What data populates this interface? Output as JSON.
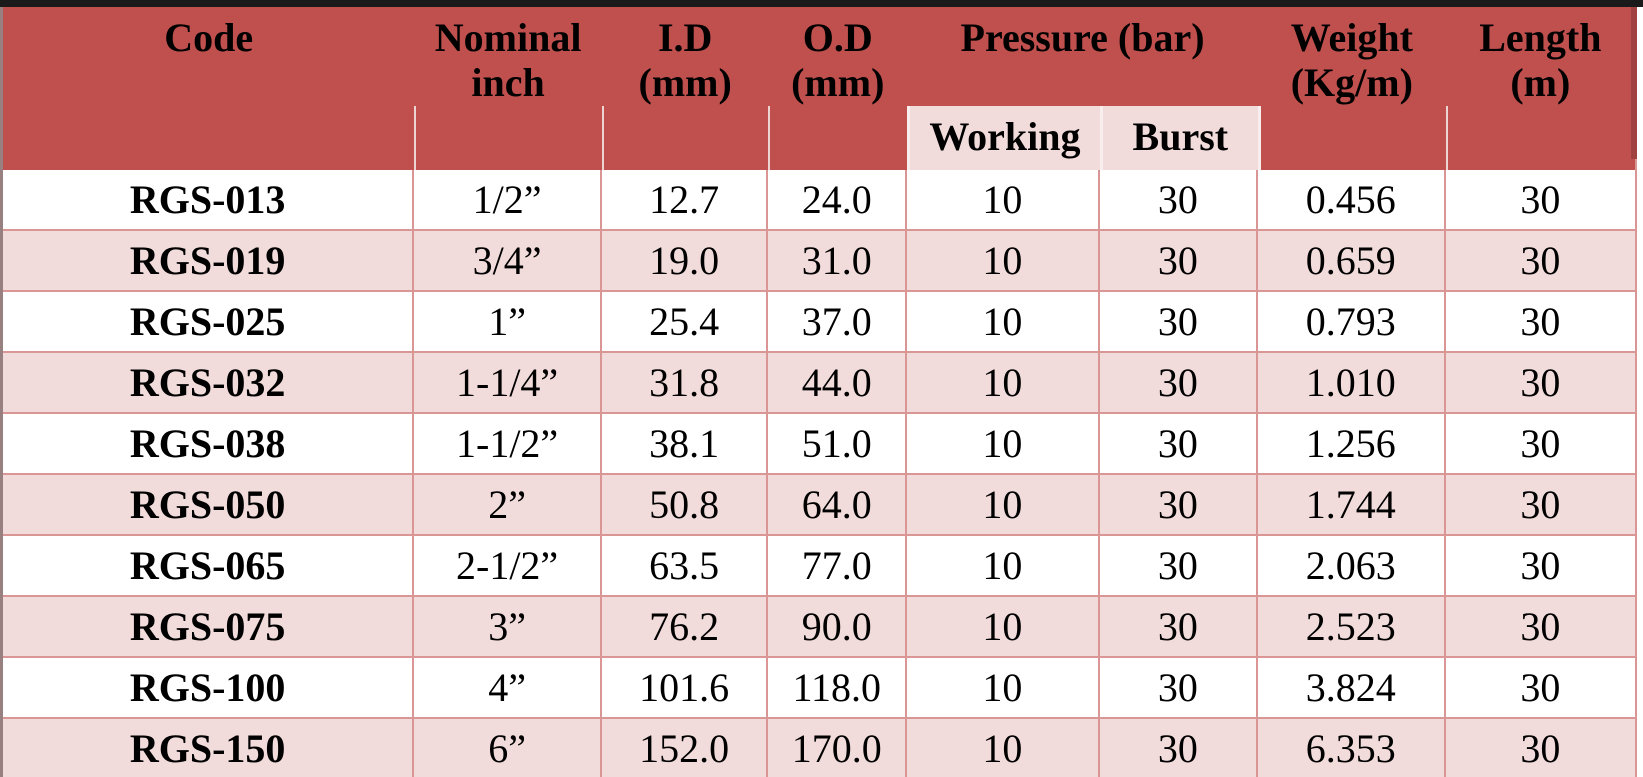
{
  "meta": {
    "description": "Rubber hose specification table"
  },
  "colors": {
    "header_bg": "#C0504D",
    "subheader_bg": "#F2DCDB",
    "row_bg": "#FFFFFF",
    "row_alt_bg": "#F2DCDB",
    "grid_border": "#D99694",
    "top_bar": "#1A1A1A",
    "bottom_bar_dark": "#262626",
    "text": "#000000"
  },
  "table": {
    "header": {
      "code": "Code",
      "nominal": {
        "line1": "Nominal",
        "line2": "inch"
      },
      "id": {
        "line1": "I.D",
        "line2": "(mm)"
      },
      "od": {
        "line1": "O.D",
        "line2": "(mm)"
      },
      "pressure_group": "Pressure (bar)",
      "working": "Working",
      "burst": "Burst",
      "weight": {
        "line1": "Weight",
        "line2": "(Kg/m)"
      },
      "length": {
        "line1": "Length",
        "line2": "(m)"
      }
    },
    "rows": [
      {
        "code": "RGS-013",
        "nominal": "1/2”",
        "id": "12.7",
        "od": "24.0",
        "working": "10",
        "burst": "30",
        "weight": "0.456",
        "length": "30"
      },
      {
        "code": "RGS-019",
        "nominal": "3/4”",
        "id": "19.0",
        "od": "31.0",
        "working": "10",
        "burst": "30",
        "weight": "0.659",
        "length": "30"
      },
      {
        "code": "RGS-025",
        "nominal": "1”",
        "id": "25.4",
        "od": "37.0",
        "working": "10",
        "burst": "30",
        "weight": "0.793",
        "length": "30"
      },
      {
        "code": "RGS-032",
        "nominal": "1-1/4”",
        "id": "31.8",
        "od": "44.0",
        "working": "10",
        "burst": "30",
        "weight": "1.010",
        "length": "30"
      },
      {
        "code": "RGS-038",
        "nominal": "1-1/2”",
        "id": "38.1",
        "od": "51.0",
        "working": "10",
        "burst": "30",
        "weight": "1.256",
        "length": "30"
      },
      {
        "code": "RGS-050",
        "nominal": "2”",
        "id": "50.8",
        "od": "64.0",
        "working": "10",
        "burst": "30",
        "weight": "1.744",
        "length": "30"
      },
      {
        "code": "RGS-065",
        "nominal": "2-1/2”",
        "id": "63.5",
        "od": "77.0",
        "working": "10",
        "burst": "30",
        "weight": "2.063",
        "length": "30"
      },
      {
        "code": "RGS-075",
        "nominal": "3”",
        "id": "76.2",
        "od": "90.0",
        "working": "10",
        "burst": "30",
        "weight": "2.523",
        "length": "30"
      },
      {
        "code": "RGS-100",
        "nominal": "4”",
        "id": "101.6",
        "od": "118.0",
        "working": "10",
        "burst": "30",
        "weight": "3.824",
        "length": "30"
      },
      {
        "code": "RGS-150",
        "nominal": "6”",
        "id": "152.0",
        "od": "170.0",
        "working": "10",
        "burst": "30",
        "weight": "6.353",
        "length": "30"
      }
    ]
  }
}
